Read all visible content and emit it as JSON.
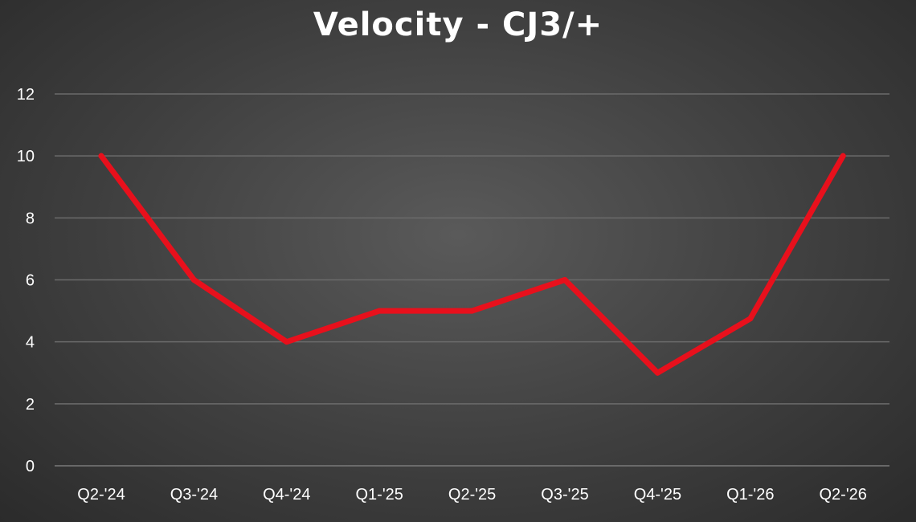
{
  "chart_data": {
    "type": "line",
    "title": "Velocity - CJ3/+",
    "xlabel": "",
    "ylabel": "",
    "categories": [
      "Q2-'24",
      "Q3-'24",
      "Q4-'24",
      "Q1-'25",
      "Q2-'25",
      "Q3-'25",
      "Q4-'25",
      "Q1-'26",
      "Q2-'26"
    ],
    "series": [
      {
        "name": "",
        "values": [
          10,
          6,
          4,
          5,
          5,
          6,
          3,
          4.75,
          10
        ],
        "color": "#e8101c"
      }
    ],
    "ylim": [
      0,
      12
    ],
    "yticks": [
      "0",
      "2",
      "4",
      "6",
      "8",
      "10",
      "12"
    ],
    "ytick_values": [
      0,
      2,
      4,
      6,
      8,
      10,
      12
    ],
    "grid": true,
    "legend": "none",
    "colors": {
      "gridline": "#6b6b6b",
      "text": "#ffffff"
    }
  }
}
